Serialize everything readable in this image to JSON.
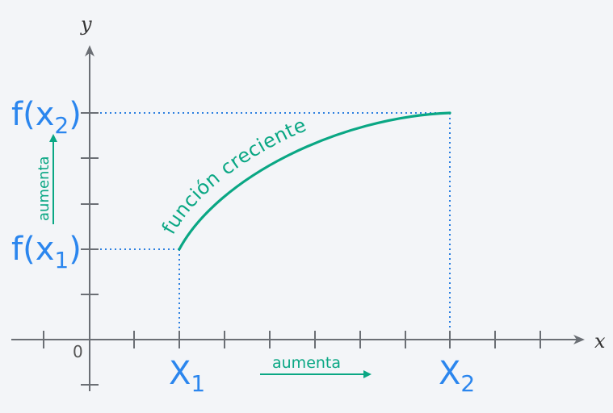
{
  "axes": {
    "x_name": "x",
    "y_name": "y",
    "origin": "0"
  },
  "labels": {
    "fx1_f": "f(x",
    "fx1_sub": "1",
    "fx1_close": ")",
    "fx2_f": "f(x",
    "fx2_sub": "2",
    "fx2_close": ")",
    "X1": "X",
    "X1_sub": "1",
    "X2": "X",
    "X2_sub": "2",
    "curve_label": "función creciente",
    "x_increase": "aumenta",
    "y_increase": "aumenta"
  },
  "colors": {
    "teal": "#0aa784",
    "blue": "#2b86ee",
    "axis": "#6b6f75"
  }
}
